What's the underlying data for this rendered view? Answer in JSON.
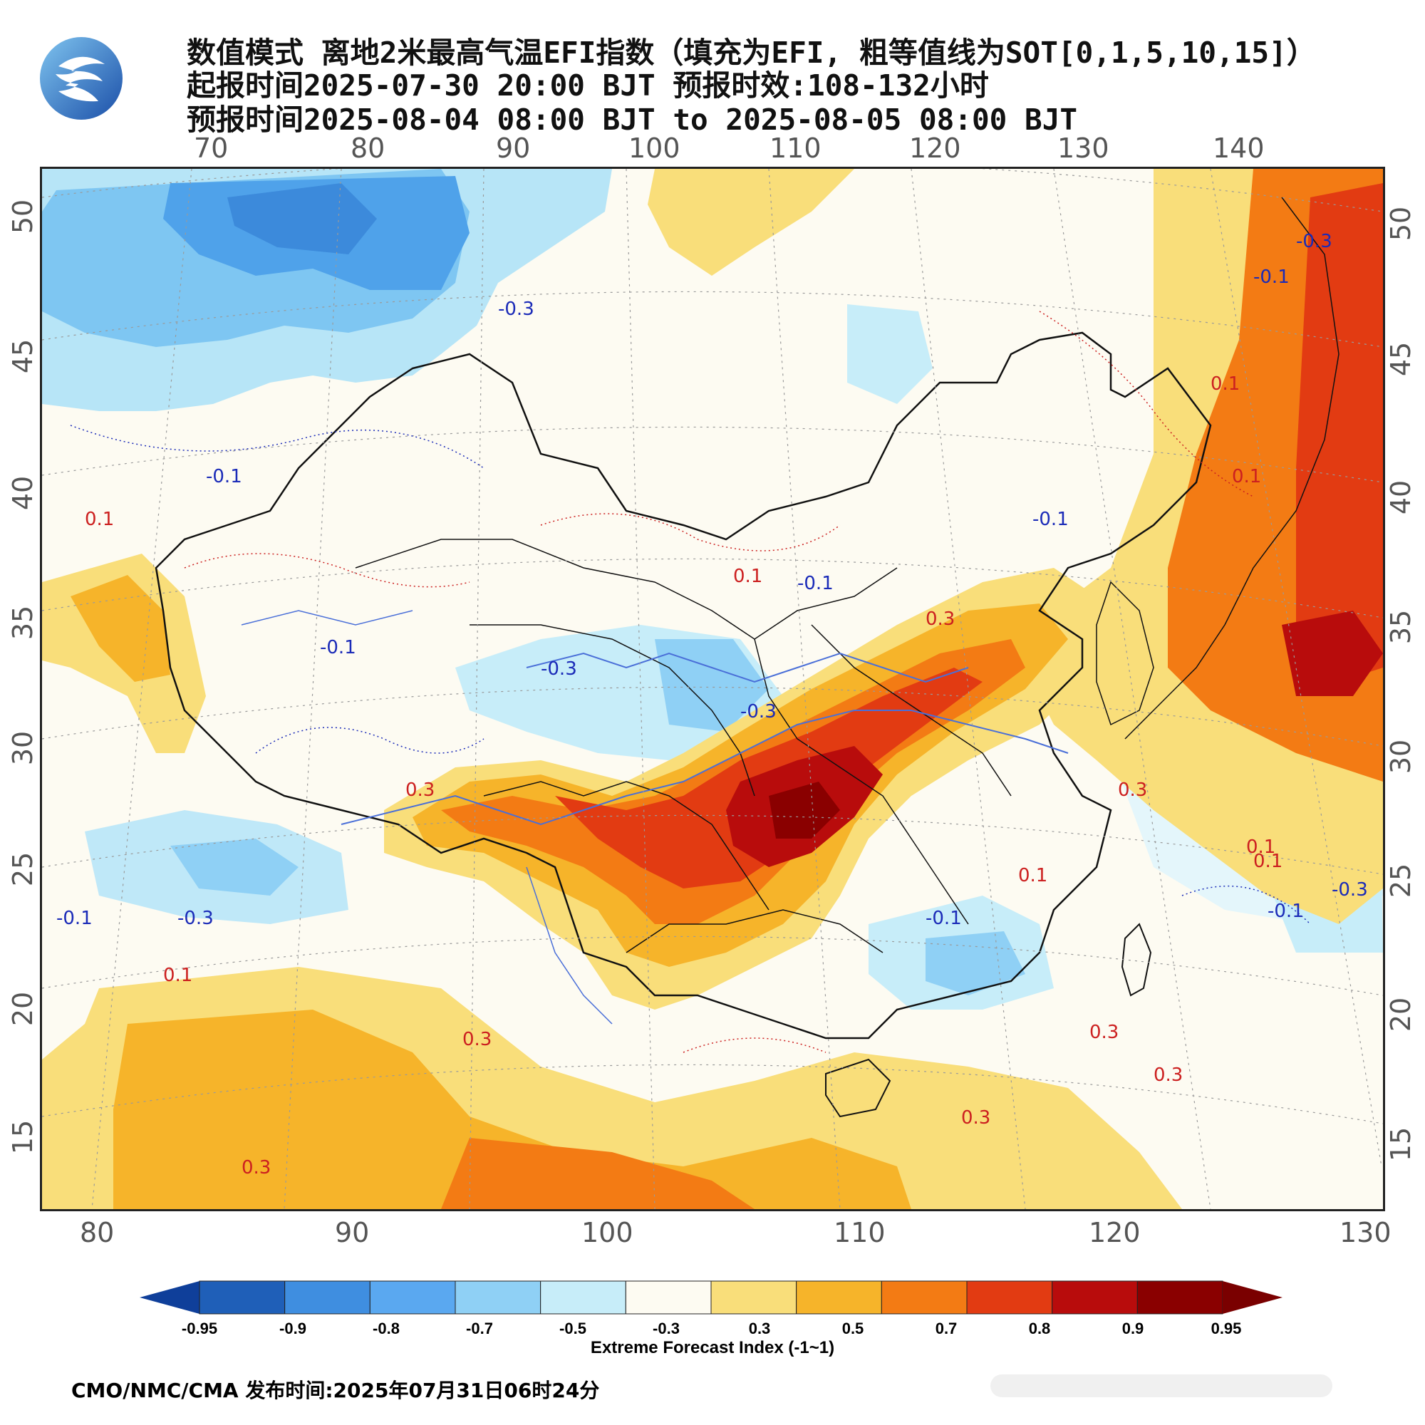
{
  "title_lines": [
    "数值模式 离地2米最高气温EFI指数（填充为EFI, 粗等值线为SOT[0,1,5,10,15]）",
    "起报时间2025-07-30 20:00 BJT 预报时效:108-132小时",
    "预报时间2025-08-04 08:00 BJT to 2025-08-05 08:00 BJT"
  ],
  "top_lon_ticks": [
    "70",
    "80",
    "90",
    "100",
    "110",
    "120",
    "130",
    "140"
  ],
  "bottom_lon_ticks": [
    "80",
    "90",
    "100",
    "110",
    "120",
    "130"
  ],
  "left_lat_ticks": [
    "50",
    "45",
    "40",
    "35",
    "30",
    "25",
    "20",
    "15"
  ],
  "right_lat_ticks": [
    "50",
    "45",
    "40",
    "35",
    "30",
    "25",
    "20",
    "15"
  ],
  "colorbar": {
    "title": "Extreme Forecast Index (-1~1)",
    "labels": [
      "-0.95",
      "-0.9",
      "-0.8",
      "-0.7",
      "-0.5",
      "-0.3",
      "0.3",
      "0.5",
      "0.7",
      "0.8",
      "0.9",
      "0.95"
    ],
    "colors": [
      "#1f5fb8",
      "#3f8ee0",
      "#5aa8f0",
      "#8fd0f5",
      "#c7edf9",
      "#fdfbf2",
      "#f9de7a",
      "#f6b42a",
      "#f37b14",
      "#e23b12",
      "#b80c0c",
      "#8a0000"
    ],
    "end_low_color": "#0f3f9a",
    "end_high_color": "#7a0000"
  },
  "contour_labels": [
    {
      "text": "-0.3",
      "color": "#1b2bb8"
    },
    {
      "text": "-0.1",
      "color": "#1b2bb8"
    },
    {
      "text": "0.1",
      "color": "#cc2020"
    },
    {
      "text": "-0.3",
      "color": "#1b2bb8"
    },
    {
      "text": "-0.1",
      "color": "#1b2bb8"
    },
    {
      "text": "-0.1",
      "color": "#1b2bb8"
    },
    {
      "text": "0.1",
      "color": "#cc2020"
    },
    {
      "text": "0.3",
      "color": "#cc2020"
    },
    {
      "text": "-0.1",
      "color": "#1b2bb8"
    },
    {
      "text": "-0.3",
      "color": "#1b2bb8"
    },
    {
      "text": "0.1",
      "color": "#cc2020"
    },
    {
      "text": "0.3",
      "color": "#cc2020"
    },
    {
      "text": "0.3",
      "color": "#cc2020"
    },
    {
      "text": "0.3",
      "color": "#cc2020"
    },
    {
      "text": "0.3",
      "color": "#cc2020"
    },
    {
      "text": "0.1",
      "color": "#cc2020"
    },
    {
      "text": "-0.1",
      "color": "#1b2bb8"
    },
    {
      "text": "0.1",
      "color": "#cc2020"
    },
    {
      "text": "-0.1",
      "color": "#1b2bb8"
    },
    {
      "text": "-0.3",
      "color": "#1b2bb8"
    },
    {
      "text": "0.3",
      "color": "#cc2020"
    },
    {
      "text": "0.1",
      "color": "#cc2020"
    },
    {
      "text": "-0.3",
      "color": "#1b2bb8"
    },
    {
      "text": "0.3",
      "color": "#cc2020"
    },
    {
      "text": "-0.1",
      "color": "#1b2bb8"
    },
    {
      "text": "0.1",
      "color": "#cc2020"
    },
    {
      "text": "0.1",
      "color": "#cc2020"
    },
    {
      "text": "-0.1",
      "color": "#1b2bb8"
    },
    {
      "text": "-0.3",
      "color": "#1b2bb8"
    },
    {
      "text": "0.3",
      "color": "#cc2020"
    }
  ],
  "footer": "CMO/NMC/CMA 发布时间:2025年07月31日06时24分"
}
